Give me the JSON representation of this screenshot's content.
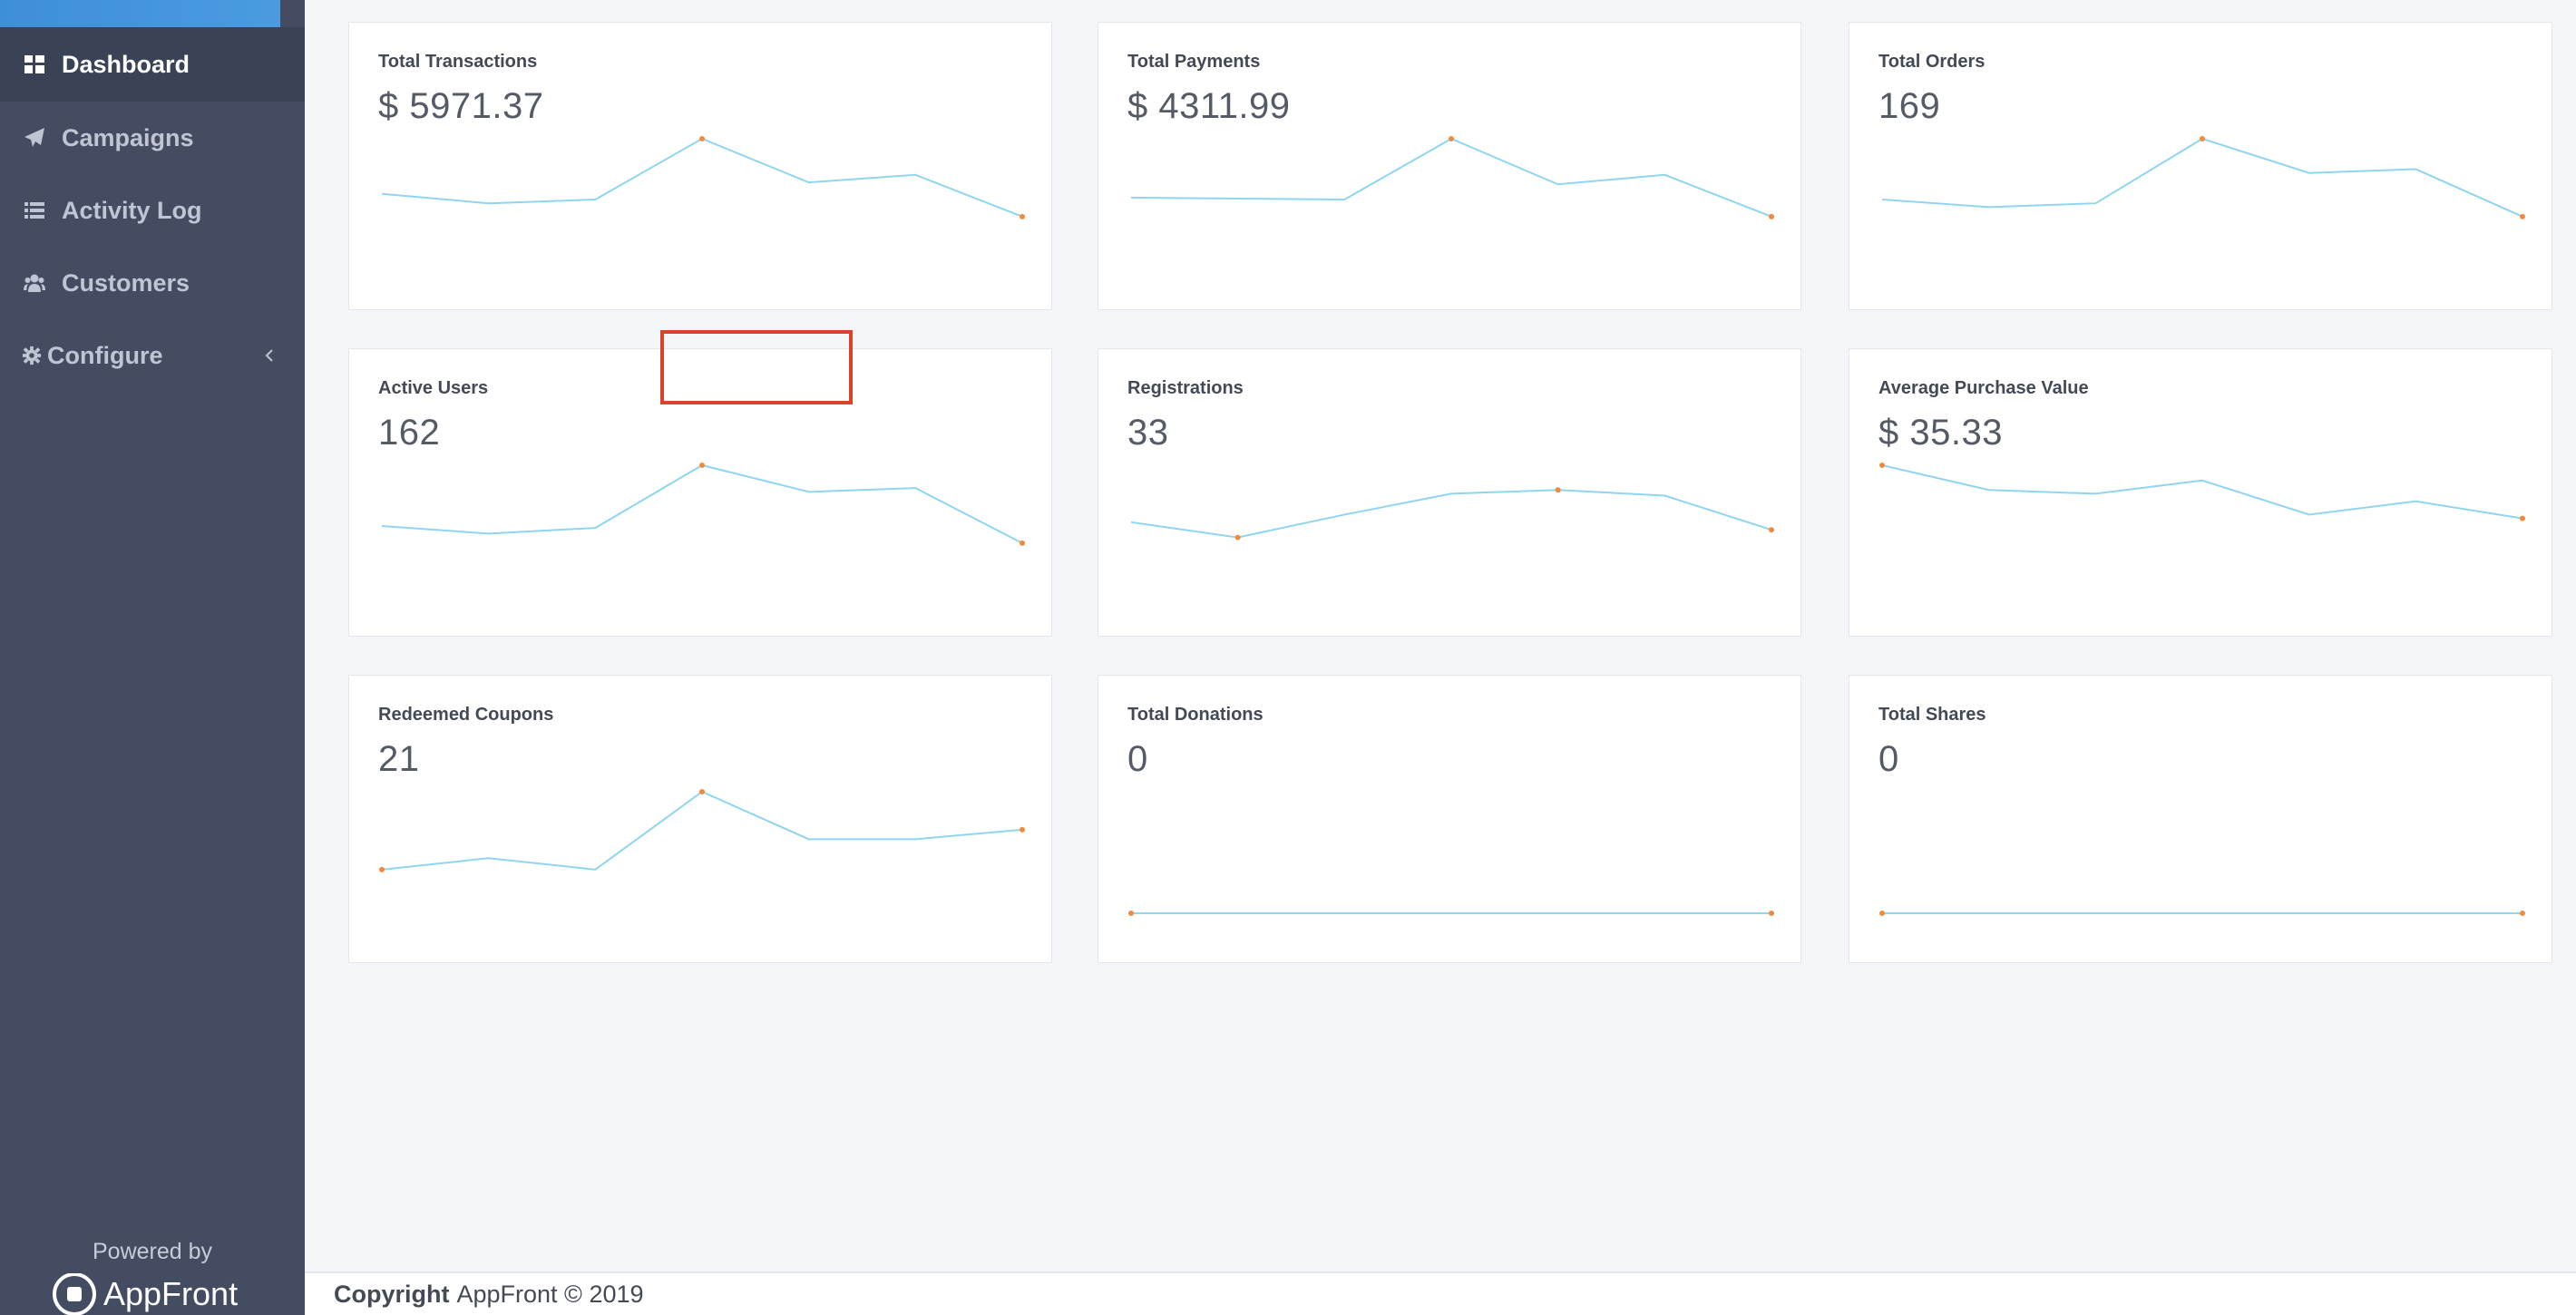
{
  "sidebar": {
    "items": [
      {
        "label": "Dashboard",
        "icon": "dashboard-icon",
        "active": true
      },
      {
        "label": "Campaigns",
        "icon": "paper-plane-icon",
        "active": false
      },
      {
        "label": "Activity Log",
        "icon": "list-icon",
        "active": false
      },
      {
        "label": "Customers",
        "icon": "users-icon",
        "active": false
      },
      {
        "label": "Configure",
        "icon": "gear-icon",
        "active": false,
        "has_submenu": true
      }
    ],
    "powered_by": "Powered by",
    "brand": "AppFront"
  },
  "cards": [
    {
      "title": "Total Transactions",
      "value": "$ 5971.37",
      "series": [
        35,
        30,
        32,
        64,
        41,
        45,
        23
      ],
      "dots": [
        3,
        6
      ]
    },
    {
      "title": "Total Payments",
      "value": "$ 4311.99",
      "series": [
        33,
        32.5,
        32,
        64,
        40,
        45,
        23
      ],
      "dots": [
        3,
        6
      ]
    },
    {
      "title": "Total Orders",
      "value": "169",
      "series": [
        32,
        28,
        30,
        64,
        46,
        48,
        23
      ],
      "dots": [
        3,
        6
      ]
    },
    {
      "title": "Active Users",
      "value": "162",
      "series": [
        32,
        28,
        31,
        64,
        50,
        52,
        23
      ],
      "dots": [
        3,
        6
      ]
    },
    {
      "title": "Registrations",
      "value": "33",
      "series": [
        34,
        26,
        38,
        49,
        51,
        48,
        30
      ],
      "dots": [
        1,
        4,
        6
      ]
    },
    {
      "title": "Average Purchase Value",
      "value": "$ 35.33",
      "series": [
        64,
        51,
        49,
        56,
        38,
        45,
        36
      ],
      "dots": [
        0,
        6
      ]
    },
    {
      "title": "Redeemed Coupons",
      "value": "21",
      "series": [
        23,
        29,
        23,
        64,
        39,
        39,
        44
      ],
      "dots": [
        0,
        3,
        6
      ]
    },
    {
      "title": "Total Donations",
      "value": "0",
      "series": [
        0,
        0,
        0,
        0,
        0,
        0,
        0
      ],
      "dots": [
        0,
        6
      ]
    },
    {
      "title": "Total Shares",
      "value": "0",
      "series": [
        0,
        0,
        0,
        0,
        0,
        0,
        0
      ],
      "dots": [
        0,
        6
      ]
    }
  ],
  "colors": {
    "line": "#8fd5ef",
    "dot": "#f08a3c",
    "highlight": "#d9432c",
    "sidebar": "#434c61"
  },
  "footer": {
    "label": "Copyright",
    "text": "AppFront © 2019"
  }
}
